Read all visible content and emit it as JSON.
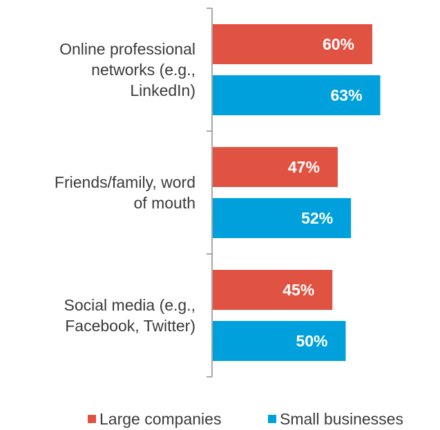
{
  "chart_data": {
    "type": "bar",
    "orientation": "horizontal",
    "categories": [
      [
        "Online professional",
        "networks (e.g.,",
        "LinkedIn)"
      ],
      [
        "Friends/family, word",
        "of mouth"
      ],
      [
        "Social media (e.g.,",
        "Facebook, Twitter)"
      ]
    ],
    "series": [
      {
        "name": "Large companies",
        "color": "#e05343",
        "values": [
          60,
          47,
          45
        ],
        "labels": [
          "60%",
          "47%",
          "45%"
        ]
      },
      {
        "name": "Small businesses",
        "color": "#00a0dc",
        "values": [
          63,
          52,
          50
        ],
        "labels": [
          "63%",
          "52%",
          "50%"
        ]
      }
    ],
    "xlim": [
      0,
      100
    ],
    "grid": false,
    "legend_position": "bottom-right",
    "title": "",
    "xlabel": "",
    "ylabel": ""
  },
  "colors": {
    "text": "#3a3a3a",
    "axis": "#8c8c8c",
    "data_label": "#ffffff"
  }
}
